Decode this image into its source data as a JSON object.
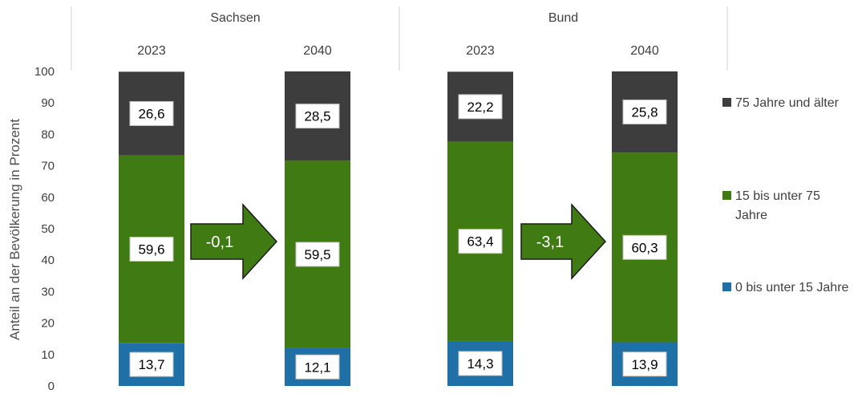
{
  "chart_data": {
    "type": "bar",
    "stacked": true,
    "groups": [
      {
        "name": "Sachsen",
        "categories": [
          "2023",
          "2040"
        ]
      },
      {
        "name": "Bund",
        "categories": [
          "2023",
          "2040"
        ]
      }
    ],
    "categories": [
      "2023",
      "2040",
      "2023",
      "2040"
    ],
    "series": [
      {
        "name": "0 bis unter 15 Jahre",
        "color": "#2070a8",
        "values": [
          13.7,
          12.1,
          14.3,
          13.9
        ],
        "labels": [
          "13,7",
          "12,1",
          "14,3",
          "13,9"
        ]
      },
      {
        "name": "15 bis unter 75 Jahre",
        "color": "#3f7a12",
        "values": [
          59.6,
          59.5,
          63.4,
          60.3
        ],
        "labels": [
          "59,6",
          "59,5",
          "63,4",
          "60,3"
        ]
      },
      {
        "name": "75 Jahre und älter",
        "color": "#3d3d3d",
        "values": [
          26.6,
          28.5,
          22.2,
          25.8
        ],
        "labels": [
          "26,6",
          "28,5",
          "22,2",
          "25,8"
        ]
      }
    ],
    "legend_order": [
      "75 Jahre und älter",
      "15 bis unter 75 Jahre",
      "0 bis unter 15 Jahre"
    ],
    "legend_position": "right",
    "annotations": [
      {
        "text": "-0,1",
        "between": [
          "Sachsen 2023",
          "Sachsen 2040"
        ],
        "shape": "arrow-right",
        "color": "#3f7a12"
      },
      {
        "text": "-3,1",
        "between": [
          "Bund 2023",
          "Bund 2040"
        ],
        "shape": "arrow-right",
        "color": "#3f7a12"
      }
    ],
    "ylabel": "Anteil an der Bevölkerung in Prozent",
    "xlabel": "",
    "ylim": [
      0,
      100
    ],
    "yticks": [
      "0",
      "10",
      "20",
      "30",
      "40",
      "50",
      "60",
      "70",
      "80",
      "90",
      "100"
    ],
    "grid": false
  }
}
